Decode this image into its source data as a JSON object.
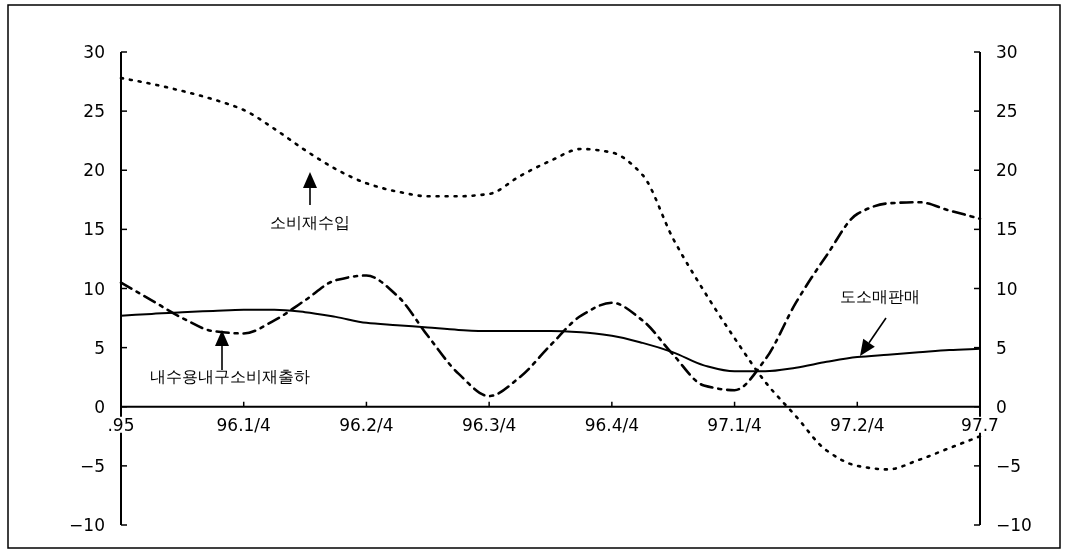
{
  "chart_data": {
    "type": "line",
    "categories": [
      ".95",
      null,
      null,
      null,
      "96.1/4",
      null,
      null,
      null,
      "96.2/4",
      null,
      null,
      null,
      "96.3/4",
      null,
      null,
      null,
      "96.4/4",
      null,
      null,
      null,
      "97.1/4",
      null,
      null,
      null,
      "97.2/4",
      null,
      null,
      null,
      "97.7"
    ],
    "ylim": [
      -10,
      30
    ],
    "yticks": [
      -10,
      -5,
      0,
      5,
      10,
      15,
      20,
      25,
      30
    ],
    "y2lim": [
      -10,
      30
    ],
    "y2ticks": [
      -10,
      -5,
      0,
      5,
      10,
      15,
      20,
      25,
      30
    ],
    "series": [
      {
        "color": "#000000",
        "line_style": "solid",
        "values": [
          7.7,
          7.85,
          8.0,
          8.1,
          8.2,
          8.2,
          8.0,
          7.6,
          7.1,
          6.9,
          6.7,
          6.5,
          6.4,
          6.4,
          6.4,
          6.3,
          6.0,
          5.4,
          4.6,
          3.5,
          3.0,
          3.0,
          3.3,
          3.8,
          4.2,
          4.4,
          4.6,
          4.8,
          4.9
        ]
      },
      {
        "color": "#000000",
        "line_style": "dotted",
        "values": [
          27.8,
          27.3,
          26.7,
          26.0,
          25.1,
          23.5,
          21.7,
          20.1,
          18.9,
          18.2,
          17.8,
          17.8,
          18.0,
          19.5,
          20.8,
          21.8,
          21.5,
          19.6,
          14.2,
          9.8,
          5.8,
          2.1,
          -0.8,
          -3.7,
          -5.0,
          -5.3,
          -4.5,
          -3.5,
          -2.5
        ]
      },
      {
        "color": "#000000",
        "line_style": "dashed",
        "values": [
          10.5,
          9.0,
          7.5,
          6.4,
          6.2,
          7.3,
          9.0,
          10.7,
          11.1,
          9.4,
          6.0,
          2.8,
          0.9,
          2.5,
          5.2,
          7.7,
          8.8,
          7.3,
          4.4,
          1.8,
          1.4,
          4.0,
          8.8,
          12.8,
          16.3,
          17.2,
          17.3,
          16.6,
          15.9
        ]
      }
    ],
    "annotations": [
      "소비재수입",
      "내수용내구소비재출하",
      "도소매판매"
    ]
  }
}
